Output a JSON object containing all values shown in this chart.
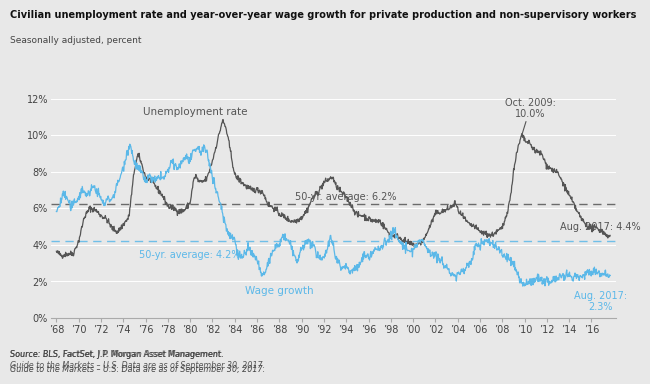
{
  "title": "Civilian unemployment rate and year-over-year wage growth for private production and non-supervisory workers",
  "subtitle": "Seasonally adjusted, percent",
  "source": "Source: BLS, FactSet, J.P. Morgan Asset Management.\nGuide to the Markets – U.S. Data are as of September 30, 2017.",
  "unemp_avg": 6.2,
  "wage_avg": 4.2,
  "unemp_avg_label": "50-yr. average: 6.2%",
  "wage_avg_label": "50-yr. average: 4.2%",
  "unemp_end_label": "Aug. 2017: 4.4%",
  "wage_end_label": "Aug. 2017:\n2.3%",
  "peak_label": "Oct. 2009:\n10.0%",
  "unemp_label": "Unemployment rate",
  "wage_label": "Wage growth",
  "unemp_color": "#555555",
  "wage_color": "#5BB8E8",
  "bg_color": "#E8E8E8",
  "plot_bg": "#E8E8E8",
  "ylim": [
    0,
    12
  ],
  "yticks": [
    0,
    2,
    4,
    6,
    8,
    10,
    12
  ],
  "ytick_labels": [
    "0%",
    "2%",
    "4%",
    "6%",
    "8%",
    "10%",
    "12%"
  ],
  "unemp_points": [
    [
      1968.0,
      3.6
    ],
    [
      1968.5,
      3.4
    ],
    [
      1969.0,
      3.5
    ],
    [
      1969.5,
      3.5
    ],
    [
      1970.0,
      4.2
    ],
    [
      1970.5,
      5.5
    ],
    [
      1971.0,
      6.0
    ],
    [
      1971.5,
      5.9
    ],
    [
      1972.0,
      5.6
    ],
    [
      1972.5,
      5.4
    ],
    [
      1973.0,
      4.9
    ],
    [
      1973.5,
      4.7
    ],
    [
      1974.0,
      5.1
    ],
    [
      1974.5,
      5.5
    ],
    [
      1975.0,
      8.1
    ],
    [
      1975.3,
      8.9
    ],
    [
      1975.5,
      8.7
    ],
    [
      1976.0,
      7.7
    ],
    [
      1976.5,
      7.5
    ],
    [
      1977.0,
      7.1
    ],
    [
      1977.5,
      6.7
    ],
    [
      1978.0,
      6.1
    ],
    [
      1978.5,
      6.0
    ],
    [
      1979.0,
      5.8
    ],
    [
      1979.5,
      5.9
    ],
    [
      1980.0,
      6.3
    ],
    [
      1980.3,
      7.5
    ],
    [
      1980.5,
      7.8
    ],
    [
      1980.7,
      7.5
    ],
    [
      1981.0,
      7.4
    ],
    [
      1981.5,
      7.6
    ],
    [
      1982.0,
      8.6
    ],
    [
      1982.5,
      9.8
    ],
    [
      1982.9,
      10.8
    ],
    [
      1983.2,
      10.4
    ],
    [
      1983.5,
      9.5
    ],
    [
      1984.0,
      7.8
    ],
    [
      1984.5,
      7.5
    ],
    [
      1985.0,
      7.2
    ],
    [
      1985.5,
      7.0
    ],
    [
      1986.0,
      7.0
    ],
    [
      1986.5,
      6.9
    ],
    [
      1987.0,
      6.2
    ],
    [
      1987.5,
      6.0
    ],
    [
      1988.0,
      5.7
    ],
    [
      1988.5,
      5.5
    ],
    [
      1989.0,
      5.3
    ],
    [
      1989.5,
      5.3
    ],
    [
      1990.0,
      5.5
    ],
    [
      1990.5,
      5.9
    ],
    [
      1991.0,
      6.6
    ],
    [
      1991.5,
      6.9
    ],
    [
      1992.0,
      7.4
    ],
    [
      1992.5,
      7.6
    ],
    [
      1992.8,
      7.7
    ],
    [
      1993.0,
      7.3
    ],
    [
      1993.5,
      6.9
    ],
    [
      1994.0,
      6.6
    ],
    [
      1994.5,
      6.1
    ],
    [
      1995.0,
      5.6
    ],
    [
      1995.5,
      5.6
    ],
    [
      1996.0,
      5.4
    ],
    [
      1996.5,
      5.3
    ],
    [
      1997.0,
      5.3
    ],
    [
      1997.5,
      4.9
    ],
    [
      1998.0,
      4.5
    ],
    [
      1998.5,
      4.5
    ],
    [
      1999.0,
      4.3
    ],
    [
      1999.5,
      4.1
    ],
    [
      2000.0,
      4.0
    ],
    [
      2000.5,
      4.0
    ],
    [
      2001.0,
      4.3
    ],
    [
      2001.5,
      5.0
    ],
    [
      2002.0,
      5.7
    ],
    [
      2002.5,
      5.8
    ],
    [
      2003.0,
      5.9
    ],
    [
      2003.5,
      6.1
    ],
    [
      2003.8,
      6.3
    ],
    [
      2004.0,
      5.9
    ],
    [
      2004.5,
      5.5
    ],
    [
      2005.0,
      5.1
    ],
    [
      2005.5,
      5.0
    ],
    [
      2006.0,
      4.7
    ],
    [
      2006.5,
      4.6
    ],
    [
      2007.0,
      4.5
    ],
    [
      2007.5,
      4.7
    ],
    [
      2008.0,
      4.9
    ],
    [
      2008.3,
      5.5
    ],
    [
      2008.6,
      6.2
    ],
    [
      2008.9,
      7.3
    ],
    [
      2009.0,
      8.1
    ],
    [
      2009.3,
      9.0
    ],
    [
      2009.5,
      9.5
    ],
    [
      2009.75,
      10.0
    ],
    [
      2010.0,
      9.7
    ],
    [
      2010.5,
      9.5
    ],
    [
      2011.0,
      9.1
    ],
    [
      2011.5,
      9.0
    ],
    [
      2012.0,
      8.3
    ],
    [
      2012.5,
      8.1
    ],
    [
      2013.0,
      7.9
    ],
    [
      2013.5,
      7.3
    ],
    [
      2014.0,
      6.7
    ],
    [
      2014.5,
      6.1
    ],
    [
      2015.0,
      5.5
    ],
    [
      2015.5,
      5.1
    ],
    [
      2016.0,
      4.9
    ],
    [
      2016.5,
      4.9
    ],
    [
      2017.0,
      4.7
    ],
    [
      2017.67,
      4.4
    ]
  ],
  "wage_points": [
    [
      1968.0,
      5.8
    ],
    [
      1968.3,
      6.2
    ],
    [
      1968.6,
      6.8
    ],
    [
      1969.0,
      6.5
    ],
    [
      1969.3,
      6.0
    ],
    [
      1969.6,
      6.3
    ],
    [
      1970.0,
      6.6
    ],
    [
      1970.3,
      7.0
    ],
    [
      1970.6,
      6.8
    ],
    [
      1971.0,
      6.8
    ],
    [
      1971.3,
      7.2
    ],
    [
      1971.6,
      7.0
    ],
    [
      1972.0,
      6.5
    ],
    [
      1972.3,
      6.2
    ],
    [
      1972.6,
      6.5
    ],
    [
      1973.0,
      6.5
    ],
    [
      1973.3,
      7.0
    ],
    [
      1973.6,
      7.5
    ],
    [
      1974.0,
      8.2
    ],
    [
      1974.3,
      9.0
    ],
    [
      1974.6,
      9.5
    ],
    [
      1975.0,
      8.5
    ],
    [
      1975.3,
      8.2
    ],
    [
      1975.6,
      8.0
    ],
    [
      1976.0,
      7.4
    ],
    [
      1976.3,
      7.8
    ],
    [
      1976.6,
      7.5
    ],
    [
      1977.0,
      7.5
    ],
    [
      1977.3,
      7.8
    ],
    [
      1977.6,
      7.6
    ],
    [
      1978.0,
      8.0
    ],
    [
      1978.3,
      8.5
    ],
    [
      1978.6,
      8.3
    ],
    [
      1979.0,
      8.2
    ],
    [
      1979.3,
      8.6
    ],
    [
      1979.6,
      8.8
    ],
    [
      1980.0,
      8.6
    ],
    [
      1980.3,
      9.0
    ],
    [
      1980.6,
      9.3
    ],
    [
      1981.0,
      9.1
    ],
    [
      1981.3,
      9.3
    ],
    [
      1981.6,
      8.8
    ],
    [
      1982.0,
      7.8
    ],
    [
      1982.3,
      7.0
    ],
    [
      1982.6,
      6.5
    ],
    [
      1983.0,
      5.5
    ],
    [
      1983.3,
      4.8
    ],
    [
      1983.6,
      4.5
    ],
    [
      1984.0,
      4.3
    ],
    [
      1984.3,
      3.5
    ],
    [
      1984.6,
      3.3
    ],
    [
      1985.0,
      3.6
    ],
    [
      1985.3,
      3.8
    ],
    [
      1985.6,
      3.4
    ],
    [
      1986.0,
      3.2
    ],
    [
      1986.3,
      2.5
    ],
    [
      1986.6,
      2.2
    ],
    [
      1987.0,
      3.0
    ],
    [
      1987.3,
      3.5
    ],
    [
      1987.6,
      3.8
    ],
    [
      1988.0,
      4.0
    ],
    [
      1988.3,
      4.5
    ],
    [
      1988.6,
      4.3
    ],
    [
      1989.0,
      4.0
    ],
    [
      1989.3,
      3.5
    ],
    [
      1989.6,
      3.0
    ],
    [
      1990.0,
      3.8
    ],
    [
      1990.3,
      4.0
    ],
    [
      1990.6,
      4.2
    ],
    [
      1991.0,
      4.0
    ],
    [
      1991.3,
      3.5
    ],
    [
      1991.6,
      3.2
    ],
    [
      1992.0,
      3.4
    ],
    [
      1992.3,
      3.8
    ],
    [
      1992.6,
      4.5
    ],
    [
      1993.0,
      3.5
    ],
    [
      1993.3,
      3.0
    ],
    [
      1993.6,
      2.8
    ],
    [
      1994.0,
      2.8
    ],
    [
      1994.3,
      2.5
    ],
    [
      1994.6,
      2.7
    ],
    [
      1995.0,
      2.7
    ],
    [
      1995.3,
      3.0
    ],
    [
      1995.6,
      3.5
    ],
    [
      1996.0,
      3.3
    ],
    [
      1996.3,
      3.5
    ],
    [
      1996.6,
      3.8
    ],
    [
      1997.0,
      3.7
    ],
    [
      1997.3,
      4.0
    ],
    [
      1997.6,
      4.2
    ],
    [
      1998.0,
      4.5
    ],
    [
      1998.3,
      4.8
    ],
    [
      1998.6,
      4.3
    ],
    [
      1999.0,
      4.0
    ],
    [
      1999.3,
      3.8
    ],
    [
      1999.6,
      3.6
    ],
    [
      2000.0,
      3.7
    ],
    [
      2000.3,
      4.0
    ],
    [
      2000.6,
      4.2
    ],
    [
      2001.0,
      4.1
    ],
    [
      2001.3,
      3.8
    ],
    [
      2001.6,
      3.5
    ],
    [
      2002.0,
      3.5
    ],
    [
      2002.3,
      3.2
    ],
    [
      2002.6,
      3.0
    ],
    [
      2003.0,
      2.8
    ],
    [
      2003.3,
      2.5
    ],
    [
      2003.6,
      2.3
    ],
    [
      2004.0,
      2.3
    ],
    [
      2004.3,
      2.5
    ],
    [
      2004.6,
      2.7
    ],
    [
      2005.0,
      2.9
    ],
    [
      2005.3,
      3.2
    ],
    [
      2005.6,
      4.0
    ],
    [
      2006.0,
      4.0
    ],
    [
      2006.3,
      4.1
    ],
    [
      2006.6,
      4.2
    ],
    [
      2007.0,
      4.1
    ],
    [
      2007.3,
      4.0
    ],
    [
      2007.6,
      3.8
    ],
    [
      2008.0,
      3.5
    ],
    [
      2008.3,
      3.3
    ],
    [
      2008.6,
      3.2
    ],
    [
      2009.0,
      3.0
    ],
    [
      2009.3,
      2.5
    ],
    [
      2009.6,
      2.0
    ],
    [
      2010.0,
      1.8
    ],
    [
      2010.3,
      1.9
    ],
    [
      2010.6,
      2.0
    ],
    [
      2011.0,
      2.1
    ],
    [
      2011.3,
      2.2
    ],
    [
      2011.6,
      2.0
    ],
    [
      2012.0,
      2.1
    ],
    [
      2012.3,
      1.9
    ],
    [
      2012.6,
      2.2
    ],
    [
      2013.0,
      2.1
    ],
    [
      2013.3,
      2.3
    ],
    [
      2013.6,
      2.2
    ],
    [
      2014.0,
      2.3
    ],
    [
      2014.3,
      2.1
    ],
    [
      2014.6,
      2.3
    ],
    [
      2015.0,
      2.2
    ],
    [
      2015.3,
      2.3
    ],
    [
      2015.6,
      2.5
    ],
    [
      2016.0,
      2.5
    ],
    [
      2016.3,
      2.6
    ],
    [
      2016.6,
      2.4
    ],
    [
      2017.0,
      2.4
    ],
    [
      2017.3,
      2.5
    ],
    [
      2017.67,
      2.3
    ]
  ]
}
